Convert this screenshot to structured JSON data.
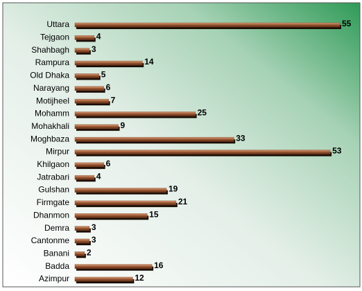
{
  "chart_data": {
    "type": "bar",
    "orientation": "horizontal",
    "categories": [
      "Uttara",
      "Tejgaon",
      "Shahbagh",
      "Rampura",
      "Old Dhaka",
      "Narayang",
      "Motijheel",
      "Mohamm",
      "Mohakhali",
      "Moghbaza",
      "Mirpur",
      "Khilgaon",
      "Jatrabari",
      "Gulshan",
      "Firmgate",
      "Dhanmon",
      "Demra",
      "Cantonme",
      "Banani",
      "Badda",
      "Azimpur"
    ],
    "values": [
      55,
      4,
      3,
      14,
      5,
      6,
      7,
      25,
      9,
      33,
      53,
      6,
      4,
      19,
      21,
      15,
      3,
      3,
      2,
      16,
      12
    ],
    "color": "#8b4a2b"
  }
}
